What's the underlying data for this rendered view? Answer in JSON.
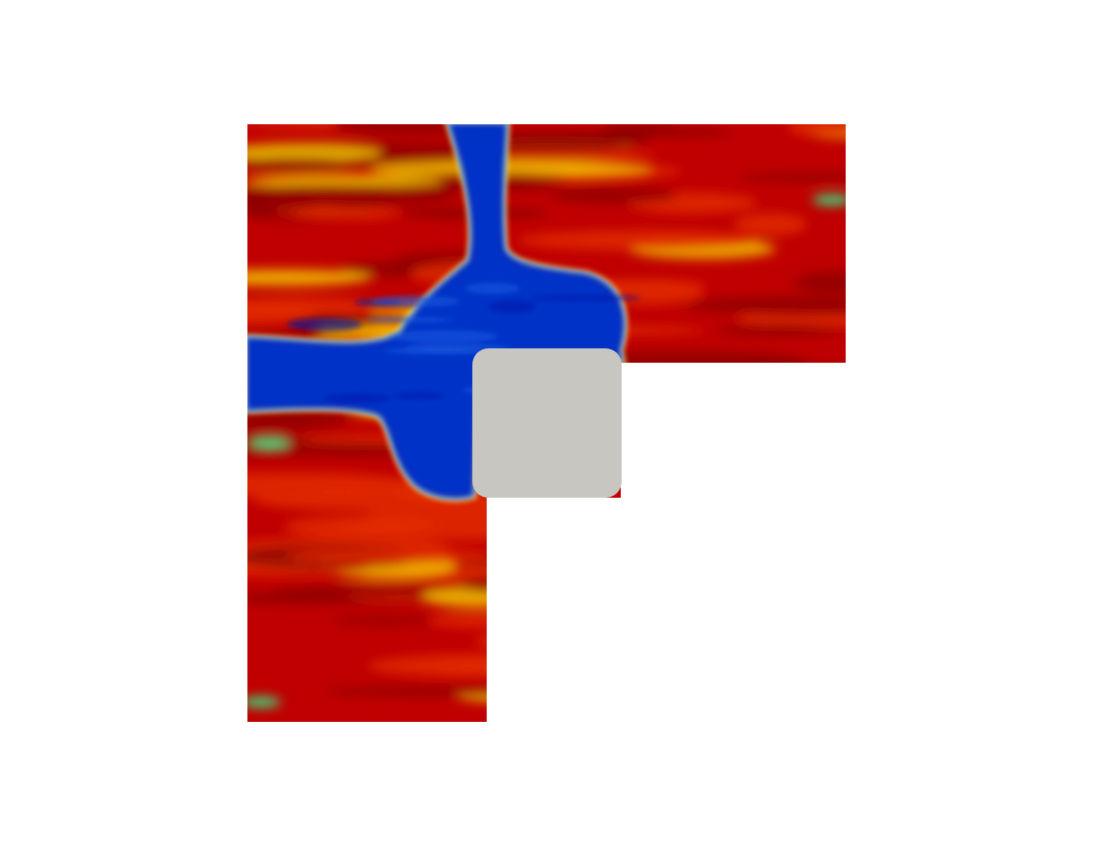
{
  "viewport": {
    "background_color": "#ffffff"
  },
  "domain": {
    "shape": "L-shaped",
    "colormap": "jet",
    "colors": {
      "high": "#c00000",
      "high_dark": "#8f0000",
      "mid_high": "#e02a00",
      "mid": "#f7d900",
      "mid_low": "#3fd67a",
      "low": "#0033c8",
      "low_deep": "#0017a8",
      "edge": "#00a3e8"
    }
  },
  "obstacle": {
    "shape": "rounded-square",
    "color": "#c8c6c0"
  }
}
